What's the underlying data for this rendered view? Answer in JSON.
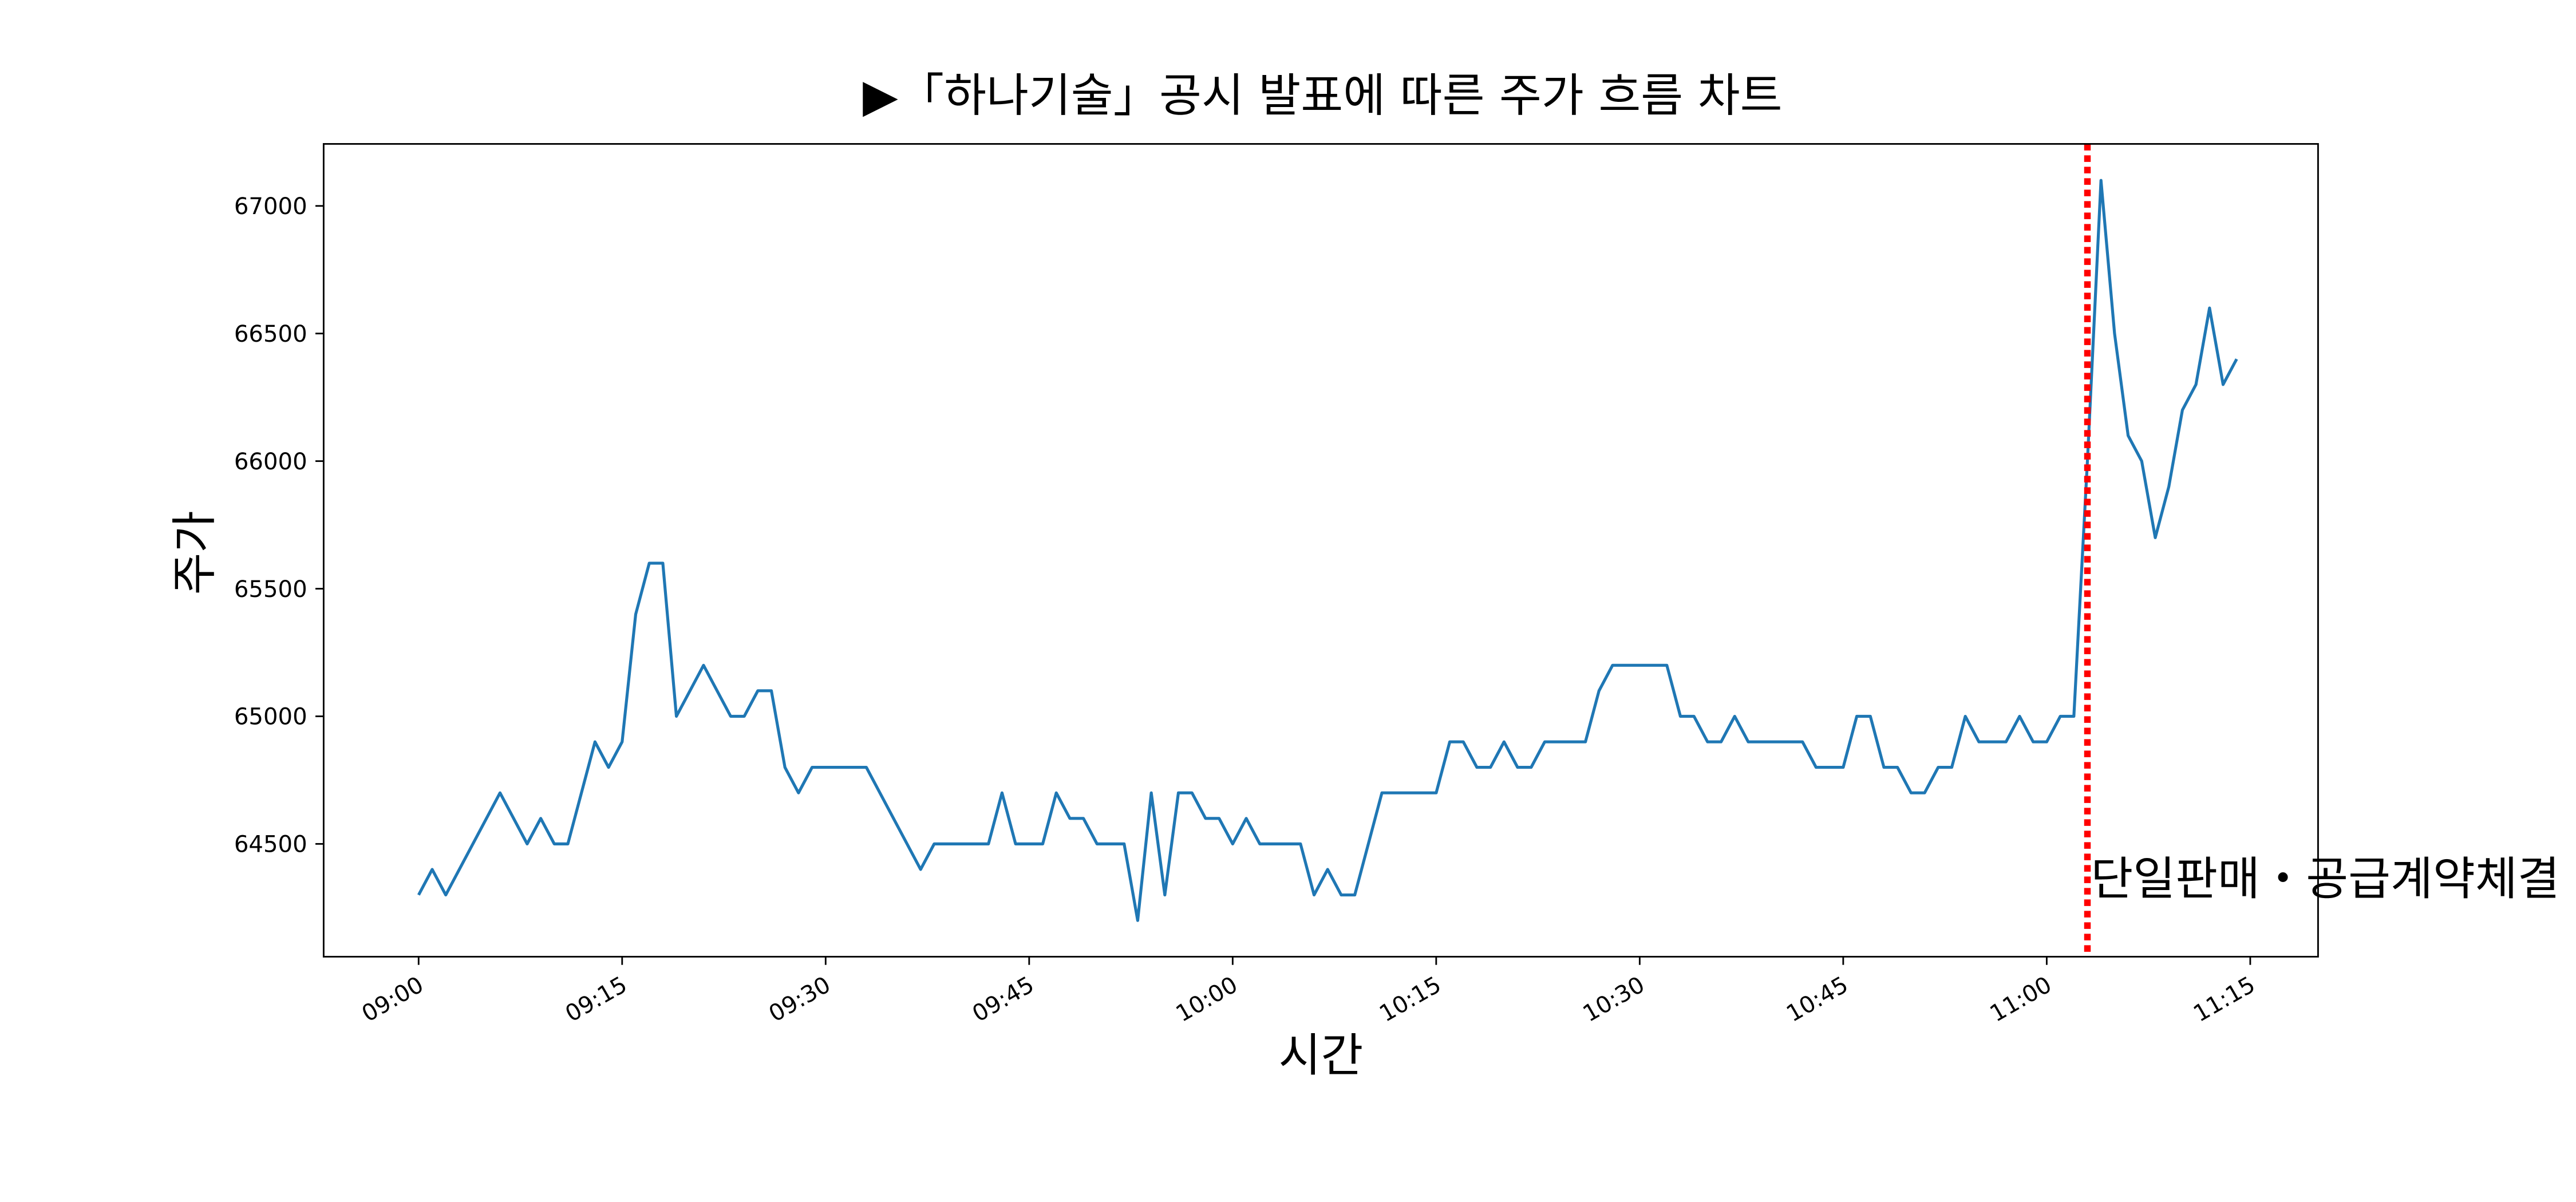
{
  "chart_data": {
    "type": "line",
    "title": "▶「하나기술」공시 발표에 따른 주가 흐름 차트",
    "x_label": "시간",
    "y_label": "주가",
    "x": [
      "09:00",
      "09:01",
      "09:02",
      "09:06",
      "09:08",
      "09:09",
      "09:10",
      "09:11",
      "09:13",
      "09:14",
      "09:15",
      "09:16",
      "09:17",
      "09:18",
      "09:19",
      "09:21",
      "09:23",
      "09:24",
      "09:25",
      "09:26",
      "09:27",
      "09:28",
      "09:29",
      "09:33",
      "09:37",
      "09:38",
      "09:42",
      "09:43",
      "09:44",
      "09:46",
      "09:47",
      "09:48",
      "09:49",
      "09:50",
      "09:52",
      "09:53",
      "09:54",
      "09:55",
      "09:56",
      "09:57",
      "09:58",
      "09:59",
      "10:00",
      "10:01",
      "10:02",
      "10:05",
      "10:06",
      "10:07",
      "10:08",
      "10:09",
      "10:11",
      "10:15",
      "10:16",
      "10:17",
      "10:18",
      "10:19",
      "10:20",
      "10:21",
      "10:22",
      "10:23",
      "10:26",
      "10:27",
      "10:28",
      "10:32",
      "10:33",
      "10:34",
      "10:35",
      "10:36",
      "10:37",
      "10:38",
      "10:42",
      "10:43",
      "10:45",
      "10:46",
      "10:47",
      "10:48",
      "10:49",
      "10:50",
      "10:51",
      "10:52",
      "10:53",
      "10:54",
      "10:55",
      "10:57",
      "10:58",
      "10:59",
      "11:00",
      "11:01",
      "11:02",
      "11:03",
      "11:04",
      "11:05",
      "11:06",
      "11:07",
      "11:08",
      "11:09",
      "11:10",
      "11:11",
      "11:12",
      "11:13",
      "11:14"
    ],
    "series": [
      {
        "name": "주가",
        "color": "#1f77b4",
        "values": [
          64300,
          64400,
          64300,
          64700,
          64500,
          64600,
          64500,
          64500,
          64900,
          64800,
          64900,
          65400,
          65600,
          65600,
          65000,
          65200,
          65000,
          65000,
          65100,
          65100,
          64800,
          64700,
          64800,
          64800,
          64400,
          64500,
          64500,
          64700,
          64500,
          64500,
          64700,
          64600,
          64600,
          64500,
          64500,
          64200,
          64700,
          64300,
          64700,
          64700,
          64600,
          64600,
          64500,
          64600,
          64500,
          64500,
          64300,
          64400,
          64300,
          64300,
          64700,
          64700,
          64900,
          64900,
          64800,
          64800,
          64900,
          64800,
          64800,
          64900,
          64900,
          65100,
          65200,
          65200,
          65000,
          65000,
          64900,
          64900,
          65000,
          64900,
          64900,
          64800,
          64800,
          65000,
          65000,
          64800,
          64800,
          64700,
          64700,
          64800,
          64800,
          65000,
          64900,
          64900,
          65000,
          64900,
          64900,
          65000,
          65000,
          66000,
          67100,
          66500,
          66100,
          66000,
          65700,
          65900,
          66200,
          66300,
          66600,
          66300,
          66400
        ]
      }
    ],
    "xlim": [
      "08:53",
      "11:20"
    ],
    "xticks": [
      "09:00",
      "09:15",
      "09:30",
      "09:45",
      "10:00",
      "10:15",
      "10:30",
      "10:45",
      "11:00",
      "11:15"
    ],
    "ylim": [
      64058,
      67243
    ],
    "yticks": [
      64500,
      65000,
      65500,
      66000,
      66500,
      67000
    ],
    "annotation": {
      "x": "11:03",
      "text": "단일판매・공급계약체결",
      "color": "#ff0000"
    }
  }
}
